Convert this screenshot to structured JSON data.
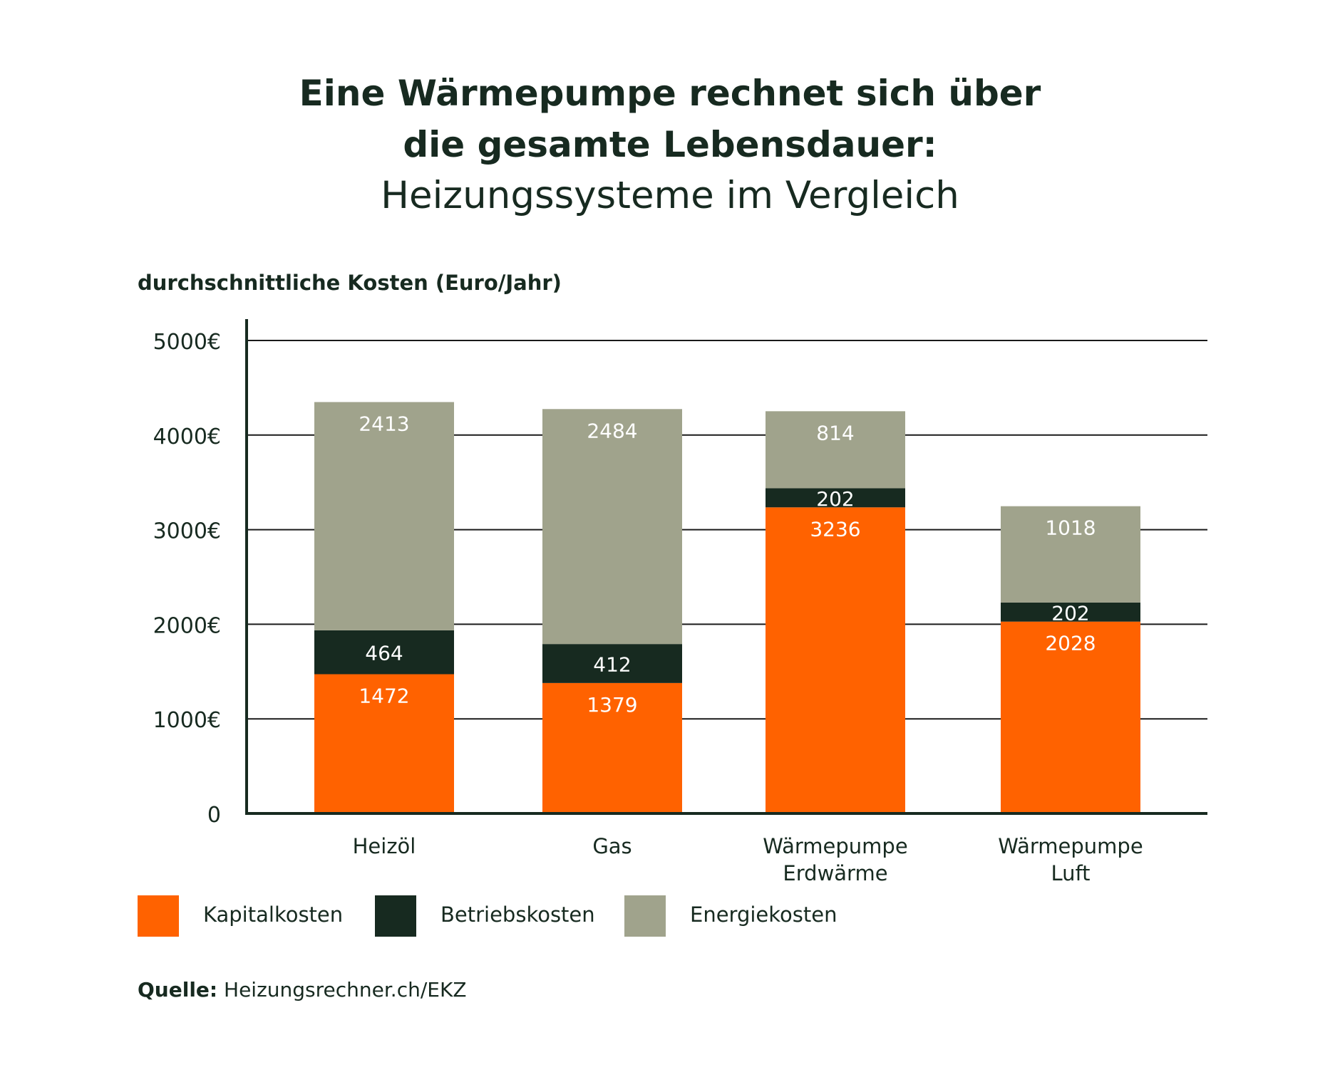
{
  "title_lines": [
    "Eine Wärmepumpe rechnet sich über",
    "die gesamte Lebensdauer:"
  ],
  "subtitle": "Heizungssysteme im Vergleich",
  "source": {
    "label": "Quelle:",
    "text": "Heizungsrechner.ch/EKZ"
  },
  "chart_data": {
    "type": "bar",
    "stacked": true,
    "ylabel": "durchschnittliche Kosten (Euro/Jahr)",
    "ylim": [
      0,
      5000
    ],
    "yticks": [
      {
        "value": 0,
        "label": "0"
      },
      {
        "value": 1000,
        "label": "1000€"
      },
      {
        "value": 2000,
        "label": "2000€"
      },
      {
        "value": 3000,
        "label": "3000€"
      },
      {
        "value": 4000,
        "label": "4000€"
      },
      {
        "value": 5000,
        "label": "5000€"
      }
    ],
    "grid": true,
    "categories": [
      [
        "Heizöl"
      ],
      [
        "Gas"
      ],
      [
        "Wärmepumpe",
        "Erdwärme"
      ],
      [
        "Wärmepumpe",
        "Luft"
      ]
    ],
    "series": [
      {
        "name": "Kapitalkosten",
        "color": "#ff6200",
        "values": [
          1472,
          1379,
          3236,
          2028
        ]
      },
      {
        "name": "Betriebskosten",
        "color": "#172a20",
        "values": [
          464,
          412,
          202,
          202
        ]
      },
      {
        "name": "Energiekosten",
        "color": "#a0a38c",
        "values": [
          2413,
          2484,
          814,
          1018
        ]
      }
    ],
    "legend_position": "bottom-left"
  }
}
